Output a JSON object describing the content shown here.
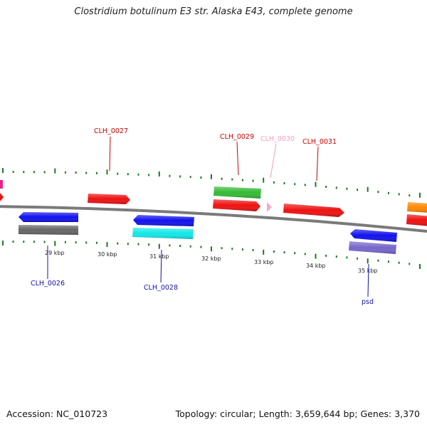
{
  "title": "Clostridium botulinum E3 str. Alaska E43, complete genome",
  "footer": {
    "accession": "Accession: NC_010723",
    "summary": "Topology: circular; Length: 3,659,644 bp; Genes: 3,370"
  },
  "axis": {
    "tick_labels": [
      "29 kbp",
      "30 kbp",
      "31 kbp",
      "32 kbp",
      "33 kbp",
      "34 kbp",
      "35 kbp"
    ],
    "tick_color": "#1e7a1e",
    "backbone_color": "#7a7a7a"
  },
  "gene_labels": [
    {
      "text": "CLH_0027",
      "color": "#cc0000"
    },
    {
      "text": "CLH_0029",
      "color": "#cc0000"
    },
    {
      "text": "CLH_0030",
      "color": "#f19ec2"
    },
    {
      "text": "CLH_0031",
      "color": "#cc0000"
    },
    {
      "text": "CLH_0026",
      "color": "#1010b0"
    },
    {
      "text": "CLH_0028",
      "color": "#1010b0"
    },
    {
      "text": "psd",
      "color": "#1010b0"
    }
  ],
  "feature_colors": {
    "red": "#ee1111",
    "blue": "#1111ee",
    "gray": "#666666",
    "cyan": "#11e8e8",
    "green": "#33bb33",
    "purple": "#7766cc",
    "pink": "#f5a8d0",
    "magenta": "#ee2288",
    "orange": "#ff8800"
  }
}
